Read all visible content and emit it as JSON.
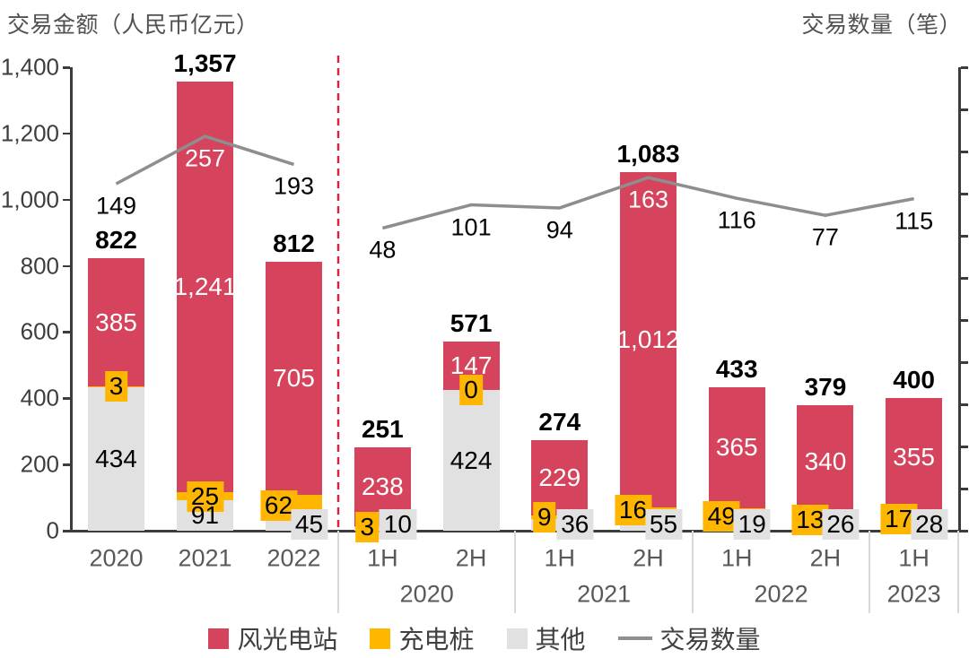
{
  "title_left": "交易金额（人民币亿元）",
  "title_right": "交易数量（笔）",
  "legend": {
    "items": [
      {
        "key": "wind-solar",
        "label": "风光电站",
        "type": "square",
        "color": "#d6435c"
      },
      {
        "key": "charging-pile",
        "label": "充电桩",
        "type": "square",
        "color": "#ffb600"
      },
      {
        "key": "other",
        "label": "其他",
        "type": "square",
        "color": "#e1e1e1"
      },
      {
        "key": "deal-count",
        "label": "交易数量",
        "type": "line",
        "color": "#8e8e8e"
      }
    ]
  },
  "chart_data": {
    "type": "bar",
    "stacked": true,
    "title": "",
    "left_axis_title": "交易金额（人民币亿元）",
    "right_axis_title": "交易数量（笔）",
    "categories": [
      "2020",
      "2021",
      "2022",
      "1H",
      "2H",
      "1H",
      "2H",
      "1H",
      "2H",
      "1H"
    ],
    "groups": [
      {
        "label": "",
        "indices": [
          0,
          1,
          2
        ]
      },
      {
        "label": "2020",
        "indices": [
          3,
          4
        ]
      },
      {
        "label": "2021",
        "indices": [
          5,
          6
        ]
      },
      {
        "label": "2022",
        "indices": [
          7,
          8
        ]
      },
      {
        "label": "2023",
        "indices": [
          9
        ]
      }
    ],
    "series": [
      {
        "key": "wind-solar",
        "name": "风光电站",
        "color": "#d6435c",
        "values": [
          385,
          1241,
          705,
          238,
          147,
          229,
          1012,
          365,
          340,
          355
        ]
      },
      {
        "key": "charging-pile",
        "name": "充电桩",
        "color": "#ffb600",
        "values": [
          3,
          25,
          62,
          3,
          0,
          9,
          16,
          49,
          13,
          17
        ]
      },
      {
        "key": "other",
        "name": "其他",
        "color": "#e1e1e1",
        "values": [
          434,
          91,
          45,
          10,
          424,
          36,
          55,
          19,
          26,
          28
        ]
      }
    ],
    "totals": [
      822,
      1357,
      812,
      251,
      571,
      274,
      1083,
      433,
      379,
      400
    ],
    "line_series": {
      "name": "交易数量",
      "color": "#8e8e8e",
      "values": [
        149,
        257,
        193,
        48,
        101,
        94,
        163,
        116,
        77,
        115
      ]
    },
    "left_axis": {
      "min": 0,
      "max": 1400,
      "tick_step": 200,
      "tick_labels": [
        "0",
        "200",
        "400",
        "600",
        "800",
        "1,000",
        "1,200",
        "1,400"
      ]
    },
    "right_axis": {
      "ticks": 12,
      "labels_visible": false
    },
    "separator": {
      "after_category_index": 2,
      "style": "dashed",
      "color": "#d2283e"
    },
    "grid": false,
    "legend_position": "bottom"
  },
  "colors": {
    "axis": "#3c3c3c",
    "tick_text": "#3d3d3d",
    "xlabel_text": "#595959",
    "divider": "#d9d9d9",
    "value_on_red": "#ffffff",
    "value_text": "#000000"
  }
}
